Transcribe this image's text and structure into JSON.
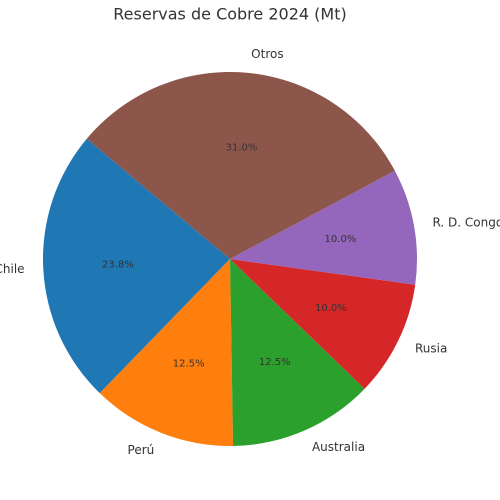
{
  "chart_data": {
    "type": "pie",
    "title": "Reservas de Cobre 2024 (Mt)",
    "categories": [
      "Chile",
      "Perú",
      "Australia",
      "Rusia",
      "R. D. Congo",
      "Otros"
    ],
    "values": [
      23.8,
      12.5,
      12.5,
      10.0,
      10.0,
      31.0
    ],
    "value_labels": [
      "23.8%",
      "12.5%",
      "12.5%",
      "10.0%",
      "10.0%",
      "31.0%"
    ],
    "colors": [
      "#1f77b4",
      "#ff7f0e",
      "#2ca02c",
      "#d62728",
      "#9467bd",
      "#8c564b"
    ]
  }
}
